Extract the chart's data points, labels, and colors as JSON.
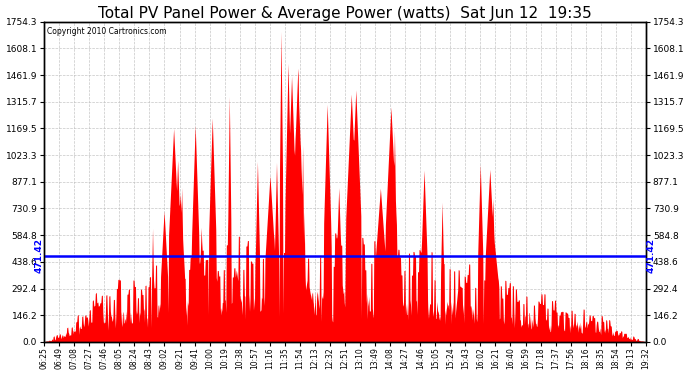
{
  "title": "Total PV Panel Power & Average Power (watts)  Sat Jun 12  19:35",
  "copyright": "Copyright 2010 Cartronics.com",
  "avg_power": 471.42,
  "ymax": 1754.3,
  "ymin": 0.0,
  "yticks": [
    0.0,
    146.2,
    292.4,
    438.6,
    584.8,
    730.9,
    877.1,
    1023.3,
    1169.5,
    1315.7,
    1461.9,
    1608.1,
    1754.3
  ],
  "xtick_labels": [
    "06:25",
    "06:49",
    "07:08",
    "07:27",
    "07:46",
    "08:05",
    "08:24",
    "08:43",
    "09:02",
    "09:21",
    "09:41",
    "10:00",
    "10:19",
    "10:38",
    "10:57",
    "11:16",
    "11:35",
    "11:54",
    "12:13",
    "12:32",
    "12:51",
    "13:10",
    "13:49",
    "14:08",
    "14:27",
    "14:46",
    "15:05",
    "15:24",
    "15:43",
    "16:02",
    "16:21",
    "16:40",
    "16:59",
    "17:18",
    "17:37",
    "17:56",
    "18:16",
    "18:35",
    "18:54",
    "19:13",
    "19:32"
  ],
  "fill_color": "#FF0000",
  "line_color": "#0000FF",
  "bg_color": "#FFFFFF",
  "grid_color": "#C0C0C0",
  "title_fontsize": 11,
  "avg_label": "471.42"
}
